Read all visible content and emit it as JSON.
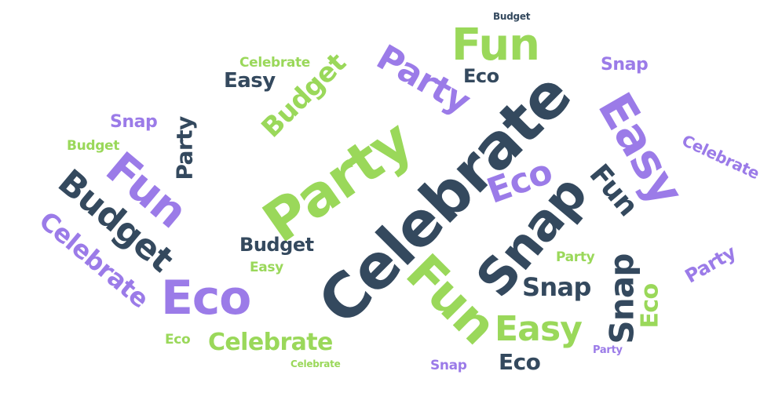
{
  "palette": {
    "green": "#9ad85a",
    "purple": "#9b7be8",
    "navy": "#34495e"
  },
  "words": {
    "celebrate_main": "Celebrate",
    "party_main": "Party",
    "snap_main": "Snap",
    "fun_main": "Fun",
    "eco_main": "Eco",
    "easy_main": "Easy",
    "budget_main": "Budget",
    "fun_top": "Fun",
    "party_top": "Party",
    "budget_top": "Budget",
    "celebrate_top": "Celebrate",
    "easy_top": "Easy",
    "eco_top": "Eco",
    "eco_mid": "Eco",
    "fun_right": "Fun",
    "snap_right": "Snap",
    "celebrate_left": "Celebrate",
    "budget_left": "Budget",
    "party_left": "Party",
    "snap_left": "Snap",
    "fun_left": "Fun",
    "eco_bottom": "Eco",
    "easy_bottom": "Easy",
    "celebrate_bottom": "Celebrate",
    "snap_bottom": "Snap",
    "snap_right2": "Snap",
    "party_right": "Party",
    "eco_right": "Eco",
    "celebrate_right": "Celebrate",
    "snap_small": "Snap",
    "party_small": "Party",
    "budget_small": "Budget",
    "easy_small": "Easy",
    "eco_small": "Eco",
    "budget_tiny": "Budget",
    "party_tiny": "Party",
    "celebrate_tiny": "Celebrate"
  }
}
